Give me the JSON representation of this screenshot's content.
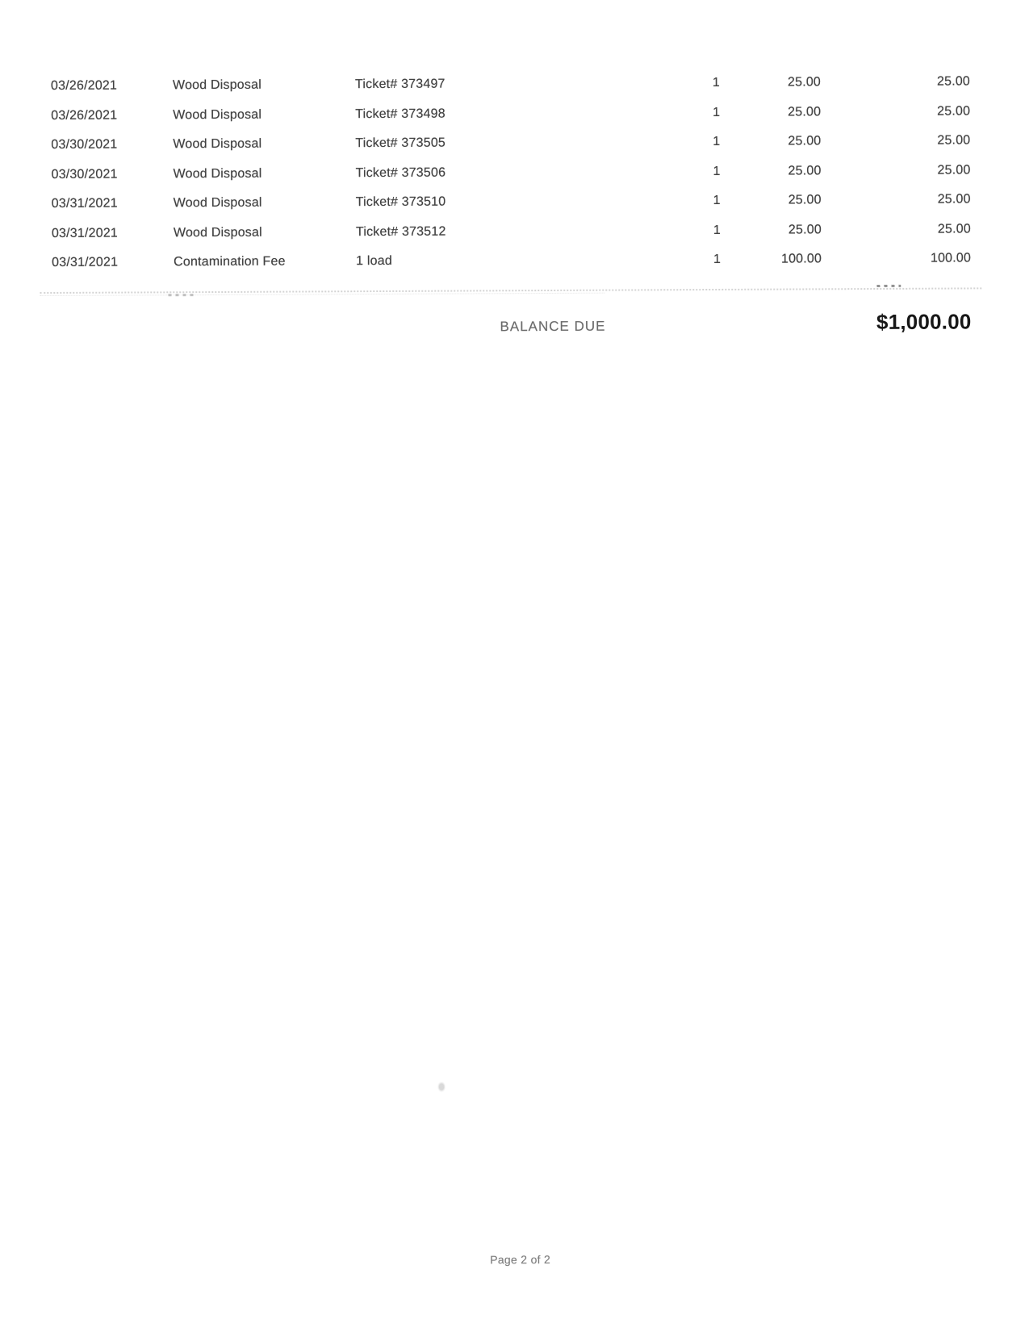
{
  "invoice_table": {
    "line_items": [
      {
        "date": "03/26/2021",
        "description": "Wood Disposal",
        "detail": "Ticket# 373497",
        "qty": "1",
        "rate": "25.00",
        "amount": "25.00"
      },
      {
        "date": "03/26/2021",
        "description": "Wood Disposal",
        "detail": "Ticket# 373498",
        "qty": "1",
        "rate": "25.00",
        "amount": "25.00"
      },
      {
        "date": "03/30/2021",
        "description": "Wood Disposal",
        "detail": "Ticket# 373505",
        "qty": "1",
        "rate": "25.00",
        "amount": "25.00"
      },
      {
        "date": "03/30/2021",
        "description": "Wood Disposal",
        "detail": "Ticket# 373506",
        "qty": "1",
        "rate": "25.00",
        "amount": "25.00"
      },
      {
        "date": "03/31/2021",
        "description": "Wood Disposal",
        "detail": "Ticket# 373510",
        "qty": "1",
        "rate": "25.00",
        "amount": "25.00"
      },
      {
        "date": "03/31/2021",
        "description": "Wood Disposal",
        "detail": "Ticket# 373512",
        "qty": "1",
        "rate": "25.00",
        "amount": "25.00"
      },
      {
        "date": "03/31/2021",
        "description": "Contamination Fee",
        "detail": "1 load",
        "qty": "1",
        "rate": "100.00",
        "amount": "100.00"
      }
    ]
  },
  "summary": {
    "balance_due_label": "BALANCE DUE",
    "balance_due_value": "$1,000.00"
  },
  "footer": {
    "page_label": "Page 2 of 2"
  },
  "colors": {
    "text": "#414141",
    "muted_label": "#6a6a6a",
    "bold_total": "#171717",
    "separator": "#9e9e9e",
    "footer_text": "#7b7b7b"
  }
}
